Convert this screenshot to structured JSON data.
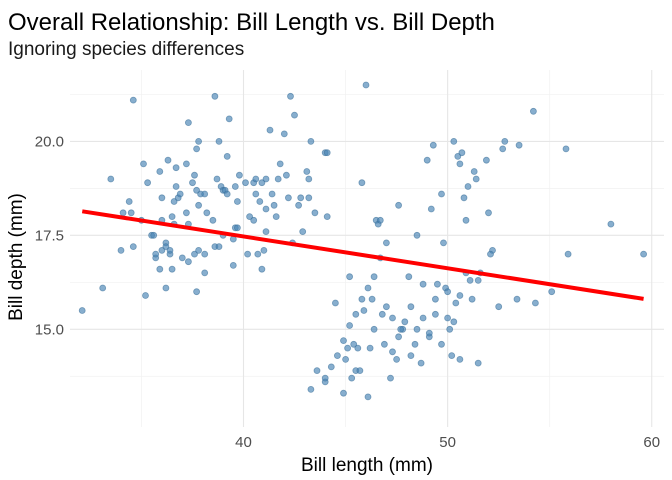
{
  "chart_data": {
    "type": "scatter",
    "title": "Overall Relationship: Bill Length vs. Bill Depth",
    "subtitle": "Ignoring species differences",
    "xlabel": "Bill length (mm)",
    "ylabel": "Bill depth (mm)",
    "xlim": [
      31.5,
      60.6
    ],
    "ylim": [
      12.4,
      21.9
    ],
    "x_ticks": [
      40,
      50,
      60
    ],
    "y_ticks": [
      15.0,
      17.5,
      20.0
    ],
    "x_tick_labels": [
      "40",
      "50",
      "60"
    ],
    "y_tick_labels": [
      "15.0",
      "17.5",
      "20.0"
    ],
    "grid": true,
    "legend": "none",
    "colors": {
      "points": "#4682b4",
      "trend": "#ff0000"
    },
    "trend_line": {
      "x": [
        32.1,
        59.6
      ],
      "y": [
        18.14,
        15.81
      ]
    },
    "points": [
      [
        32.1,
        15.5
      ],
      [
        33.1,
        16.1
      ],
      [
        33.5,
        19.0
      ],
      [
        34.0,
        17.1
      ],
      [
        34.1,
        18.1
      ],
      [
        34.4,
        18.4
      ],
      [
        34.5,
        18.1
      ],
      [
        34.6,
        21.1
      ],
      [
        34.6,
        17.2
      ],
      [
        35.0,
        17.9
      ],
      [
        35.1,
        19.4
      ],
      [
        35.2,
        15.9
      ],
      [
        35.3,
        18.9
      ],
      [
        35.5,
        17.5
      ],
      [
        35.6,
        17.5
      ],
      [
        35.7,
        16.9
      ],
      [
        35.7,
        17.0
      ],
      [
        35.9,
        16.6
      ],
      [
        35.9,
        19.2
      ],
      [
        36.0,
        17.9
      ],
      [
        36.0,
        18.5
      ],
      [
        36.0,
        17.1
      ],
      [
        36.2,
        16.1
      ],
      [
        36.2,
        17.3
      ],
      [
        36.2,
        17.2
      ],
      [
        36.3,
        19.5
      ],
      [
        36.4,
        17.0
      ],
      [
        36.4,
        17.1
      ],
      [
        36.5,
        16.6
      ],
      [
        36.5,
        18.0
      ],
      [
        36.6,
        17.8
      ],
      [
        36.6,
        18.4
      ],
      [
        36.7,
        19.3
      ],
      [
        36.7,
        18.8
      ],
      [
        36.8,
        18.5
      ],
      [
        36.9,
        18.6
      ],
      [
        37.0,
        16.9
      ],
      [
        37.2,
        18.1
      ],
      [
        37.2,
        19.4
      ],
      [
        37.3,
        20.5
      ],
      [
        37.3,
        16.8
      ],
      [
        37.3,
        17.8
      ],
      [
        37.5,
        18.9
      ],
      [
        37.6,
        19.1
      ],
      [
        37.6,
        17.0
      ],
      [
        37.7,
        18.7
      ],
      [
        37.7,
        16.0
      ],
      [
        37.7,
        19.8
      ],
      [
        37.8,
        18.3
      ],
      [
        37.8,
        17.1
      ],
      [
        37.8,
        20.0
      ],
      [
        37.9,
        18.6
      ],
      [
        38.1,
        18.6
      ],
      [
        38.1,
        17.0
      ],
      [
        38.1,
        16.5
      ],
      [
        38.2,
        18.1
      ],
      [
        38.5,
        17.9
      ],
      [
        38.6,
        21.2
      ],
      [
        38.6,
        17.2
      ],
      [
        38.7,
        19.0
      ],
      [
        38.8,
        17.2
      ],
      [
        38.8,
        20.0
      ],
      [
        38.9,
        18.8
      ],
      [
        39.0,
        18.7
      ],
      [
        39.0,
        17.5
      ],
      [
        39.1,
        18.7
      ],
      [
        39.2,
        19.6
      ],
      [
        39.2,
        18.6
      ],
      [
        39.3,
        20.6
      ],
      [
        39.5,
        17.4
      ],
      [
        39.5,
        16.7
      ],
      [
        39.6,
        17.7
      ],
      [
        39.6,
        18.8
      ],
      [
        39.7,
        18.4
      ],
      [
        39.7,
        17.7
      ],
      [
        39.8,
        19.1
      ],
      [
        40.1,
        18.9
      ],
      [
        40.2,
        17.0
      ],
      [
        40.3,
        18.0
      ],
      [
        40.5,
        17.9
      ],
      [
        40.5,
        18.9
      ],
      [
        40.6,
        18.6
      ],
      [
        40.6,
        19.0
      ],
      [
        40.7,
        17.0
      ],
      [
        40.8,
        18.4
      ],
      [
        40.9,
        16.6
      ],
      [
        40.9,
        18.9
      ],
      [
        41.0,
        17.1
      ],
      [
        41.1,
        18.2
      ],
      [
        41.1,
        19.0
      ],
      [
        41.1,
        17.6
      ],
      [
        41.3,
        20.3
      ],
      [
        41.4,
        18.6
      ],
      [
        41.5,
        18.3
      ],
      [
        41.6,
        18.0
      ],
      [
        41.7,
        19.0
      ],
      [
        41.8,
        19.4
      ],
      [
        42.0,
        20.2
      ],
      [
        42.1,
        19.1
      ],
      [
        42.2,
        18.5
      ],
      [
        42.3,
        21.2
      ],
      [
        42.4,
        17.3
      ],
      [
        42.5,
        20.7
      ],
      [
        42.7,
        18.3
      ],
      [
        42.8,
        18.5
      ],
      [
        42.9,
        17.6
      ],
      [
        43.1,
        19.2
      ],
      [
        43.2,
        18.5
      ],
      [
        43.2,
        19.0
      ],
      [
        43.3,
        20.0
      ],
      [
        43.5,
        18.1
      ],
      [
        44.0,
        19.7
      ],
      [
        44.1,
        18.0
      ],
      [
        44.1,
        19.7
      ],
      [
        44.5,
        15.7
      ],
      [
        44.9,
        13.3
      ],
      [
        45.1,
        14.5
      ],
      [
        45.2,
        16.4
      ],
      [
        45.3,
        13.7
      ],
      [
        45.5,
        13.9
      ],
      [
        45.7,
        13.9
      ],
      [
        46.1,
        13.2
      ],
      [
        46.2,
        14.5
      ],
      [
        46.4,
        15.0
      ],
      [
        46.5,
        17.9
      ],
      [
        46.6,
        17.8
      ],
      [
        46.8,
        15.4
      ],
      [
        47.0,
        17.3
      ],
      [
        47.2,
        13.7
      ],
      [
        47.5,
        14.2
      ],
      [
        47.8,
        15.0
      ],
      [
        48.1,
        16.4
      ],
      [
        48.4,
        14.6
      ],
      [
        48.7,
        14.1
      ],
      [
        49.0,
        19.5
      ],
      [
        49.1,
        14.8
      ],
      [
        49.2,
        18.2
      ],
      [
        49.5,
        16.2
      ],
      [
        49.8,
        17.3
      ],
      [
        50.0,
        15.3
      ],
      [
        50.2,
        14.3
      ],
      [
        50.4,
        15.7
      ],
      [
        50.5,
        19.6
      ],
      [
        50.7,
        19.7
      ],
      [
        50.8,
        18.5
      ],
      [
        51.0,
        18.8
      ],
      [
        51.3,
        19.2
      ],
      [
        51.5,
        16.3
      ],
      [
        51.9,
        19.5
      ],
      [
        52.0,
        18.1
      ],
      [
        52.2,
        17.1
      ],
      [
        52.5,
        15.6
      ],
      [
        52.7,
        19.8
      ],
      [
        53.4,
        15.8
      ],
      [
        54.3,
        15.7
      ],
      [
        55.1,
        16.0
      ],
      [
        55.9,
        17.0
      ],
      [
        58.0,
        17.8
      ],
      [
        59.6,
        17.0
      ],
      [
        45.8,
        18.9
      ],
      [
        46.0,
        21.5
      ],
      [
        46.7,
        17.9
      ],
      [
        47.6,
        18.3
      ],
      [
        48.5,
        17.5
      ],
      [
        49.3,
        19.9
      ],
      [
        49.7,
        18.6
      ],
      [
        50.3,
        20.0
      ],
      [
        50.6,
        19.4
      ],
      [
        50.9,
        17.9
      ],
      [
        51.4,
        19.0
      ],
      [
        52.8,
        20.0
      ],
      [
        53.5,
        19.9
      ],
      [
        54.2,
        20.8
      ],
      [
        55.8,
        19.8
      ],
      [
        45.4,
        14.6
      ],
      [
        45.6,
        14.5
      ],
      [
        45.9,
        15.5
      ],
      [
        46.3,
        15.8
      ],
      [
        46.9,
        14.6
      ],
      [
        47.3,
        15.3
      ],
      [
        47.7,
        15.0
      ],
      [
        48.2,
        15.6
      ],
      [
        48.8,
        16.2
      ],
      [
        49.4,
        15.8
      ],
      [
        49.9,
        16.1
      ],
      [
        50.1,
        15.0
      ],
      [
        50.6,
        15.9
      ],
      [
        51.1,
        16.3
      ],
      [
        51.6,
        16.5
      ],
      [
        52.1,
        17.0
      ],
      [
        43.3,
        13.4
      ],
      [
        43.6,
        13.9
      ],
      [
        44.0,
        13.6
      ],
      [
        44.3,
        14.0
      ],
      [
        44.6,
        14.3
      ],
      [
        44.9,
        14.7
      ],
      [
        45.2,
        15.1
      ],
      [
        45.5,
        15.4
      ],
      [
        45.8,
        15.8
      ],
      [
        46.1,
        16.1
      ],
      [
        46.4,
        16.4
      ],
      [
        46.7,
        16.9
      ],
      [
        47.0,
        15.6
      ],
      [
        47.3,
        14.4
      ],
      [
        47.6,
        14.8
      ],
      [
        47.9,
        15.2
      ],
      [
        48.2,
        14.3
      ],
      [
        48.5,
        15.0
      ],
      [
        48.8,
        15.3
      ],
      [
        49.1,
        14.9
      ],
      [
        49.4,
        15.4
      ],
      [
        49.7,
        14.6
      ],
      [
        50.0,
        16.0
      ],
      [
        50.3,
        15.2
      ],
      [
        50.6,
        14.2
      ],
      [
        50.9,
        16.5
      ],
      [
        51.2,
        15.8
      ],
      [
        51.5,
        14.1
      ],
      [
        44.0,
        13.7
      ],
      [
        45.0,
        14.2
      ]
    ]
  }
}
